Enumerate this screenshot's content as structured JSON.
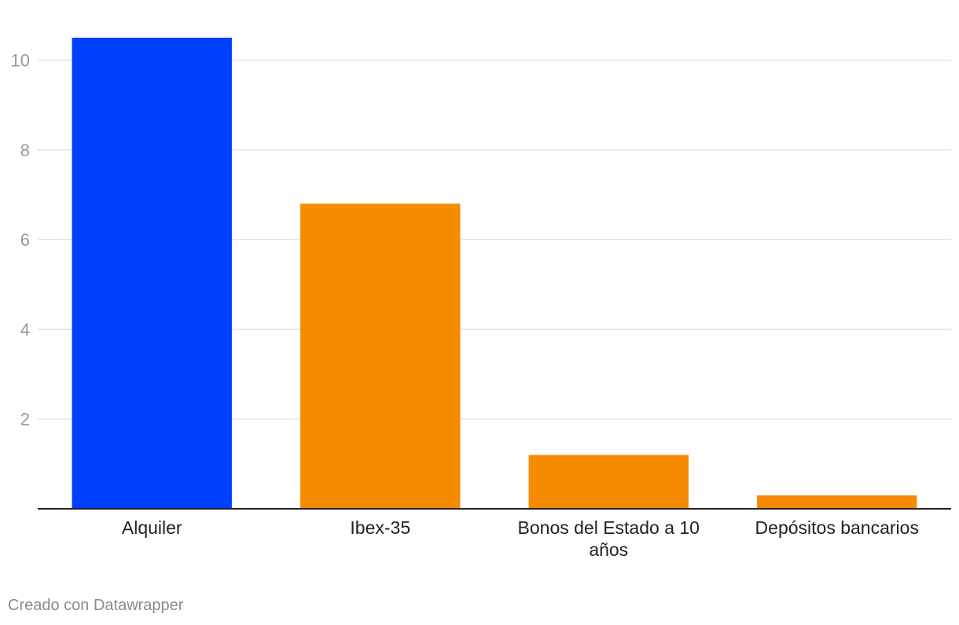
{
  "chart_data": {
    "type": "bar",
    "categories": [
      "Alquiler",
      "Ibex-35",
      "Bonos del Estado a 10 años",
      "Depósitos bancarios"
    ],
    "category_lines": [
      [
        "Alquiler"
      ],
      [
        "Ibex-35"
      ],
      [
        "Bonos del Estado a 10",
        "años"
      ],
      [
        "Depósitos bancarios"
      ]
    ],
    "values": [
      10.5,
      6.8,
      1.2,
      0.3
    ],
    "bar_colors": [
      "#0040ff",
      "#f78b00",
      "#f78b00",
      "#f78b00"
    ],
    "ylim": [
      0,
      10.5
    ],
    "yticks": [
      2,
      4,
      6,
      8,
      10
    ],
    "grid": true,
    "title": "",
    "xlabel": "",
    "ylabel": ""
  },
  "footer": {
    "credit": "Creado con Datawrapper"
  }
}
